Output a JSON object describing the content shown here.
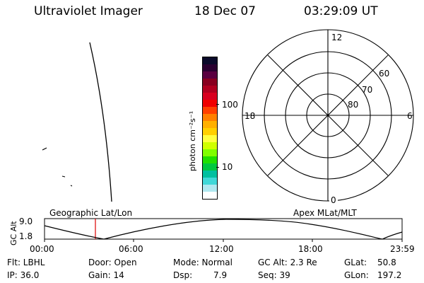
{
  "header": {
    "instrument": "Ultraviolet Imager",
    "date": "18 Dec 07",
    "time": "03:29:09 UT"
  },
  "colorbar": {
    "unit_label": "photon cm⁻²s⁻¹",
    "tick_100": "100",
    "tick_10": "10",
    "colors": [
      "#0a0a2a",
      "#2a0030",
      "#5a0040",
      "#880020",
      "#b00020",
      "#d80020",
      "#f00000",
      "#ff4000",
      "#ff8000",
      "#ffb000",
      "#ffd000",
      "#ffff40",
      "#d0ff00",
      "#80ff00",
      "#20e000",
      "#00c840",
      "#00c0a0",
      "#40d8d8",
      "#b0e8f0",
      "#ffffff"
    ]
  },
  "polar": {
    "label_12": "12",
    "label_18": "18",
    "label_6": "6",
    "label_0": "0",
    "label_80": "80",
    "label_70": "70",
    "label_60": "60"
  },
  "timeline": {
    "y_axis_label": "GC Alt",
    "y_max": "9.0",
    "y_min": "1.8",
    "left_label": "Geographic Lat/Lon",
    "right_label": "Apex MLat/MLT",
    "ticks": [
      "00:00",
      "06:00",
      "12:00",
      "18:00",
      "23:59"
    ],
    "marker_color": "#dd0000"
  },
  "status": {
    "flt": "Flt: LBHL",
    "ip": "IP: 36.0",
    "door": "Door: Open",
    "gain": "Gain: 14",
    "mode": "Mode: Normal",
    "dsp_label": "Dsp:",
    "dsp_value": "7.9",
    "gc_alt": "GC Alt: 2.3 Re",
    "seq": "Seq: 39",
    "glat_label": "GLat:",
    "glat_value": "50.8",
    "glon_label": "GLon:",
    "glon_value": "197.2"
  }
}
